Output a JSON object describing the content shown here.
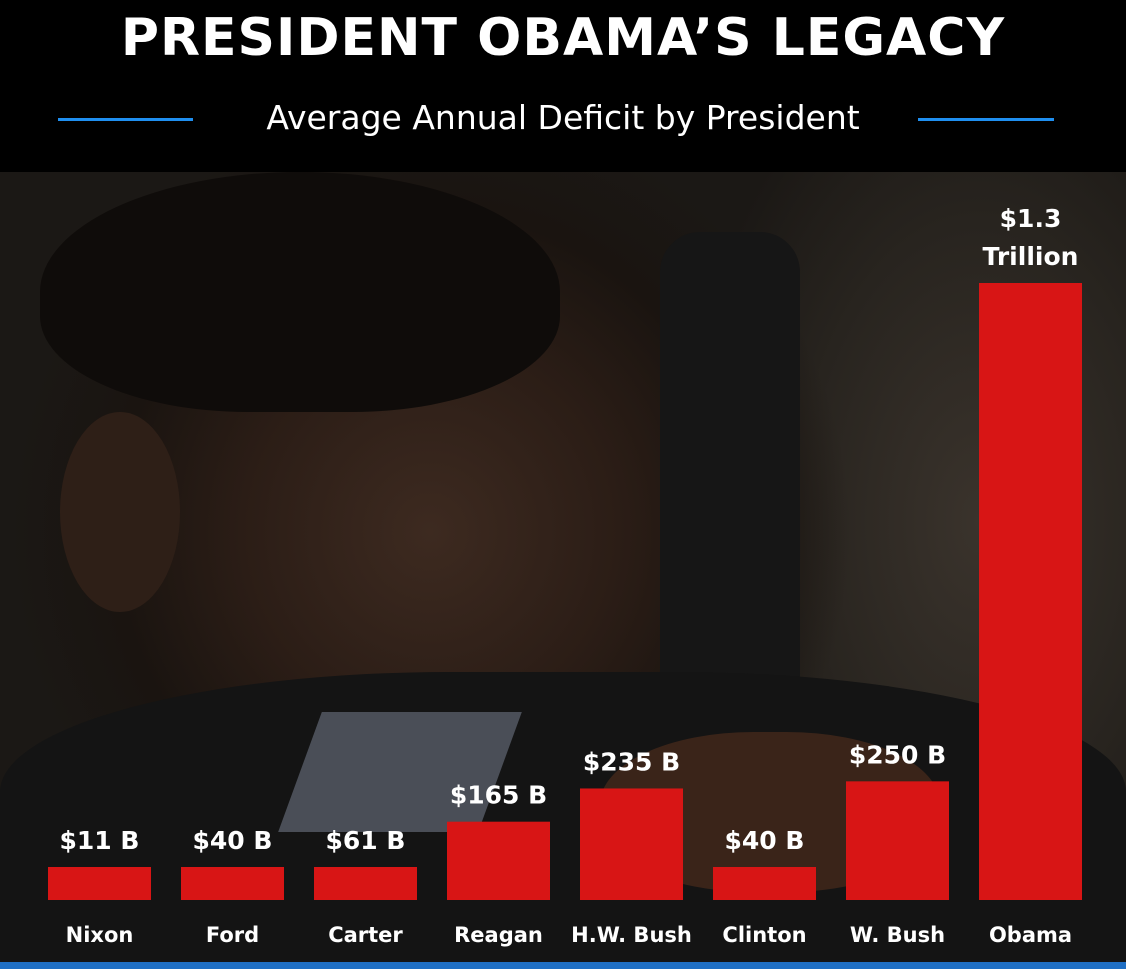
{
  "header": {
    "title": "PRESIDENT OBAMA’S LEGACY",
    "subtitle": "Average Annual Deficit by President"
  },
  "colors": {
    "bar": "#d81515",
    "accent_rule": "#1f8ff0",
    "label_text": "#ffffff"
  },
  "chart_data": {
    "type": "bar",
    "title": "PRESIDENT OBAMA’S LEGACY",
    "subtitle": "Average Annual Deficit by President",
    "categories": [
      "Nixon",
      "Ford",
      "Carter",
      "Reagan",
      "H.W. Bush",
      "Clinton",
      "W. Bush",
      "Obama"
    ],
    "values": [
      11,
      40,
      61,
      165,
      235,
      40,
      250,
      1300
    ],
    "unit": "billion USD",
    "data_labels": [
      "$11 B",
      "$40 B",
      "$61 B",
      "$165 B",
      "$235 B",
      "$40 B",
      "$250 B",
      "$1.3 Trillion"
    ],
    "xlabel": "",
    "ylabel": "",
    "grid": false,
    "legend": "none"
  }
}
